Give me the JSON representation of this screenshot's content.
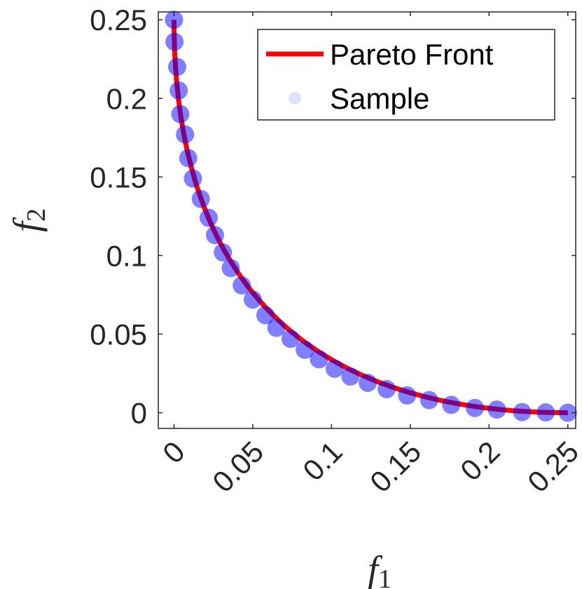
{
  "chart_data": {
    "type": "scatter",
    "title": "",
    "xlabel": {
      "base": "f",
      "sub": "1"
    },
    "ylabel": {
      "base": "f",
      "sub": "2"
    },
    "xlim": [
      -0.01,
      0.255
    ],
    "ylim": [
      -0.01,
      0.255
    ],
    "x_ticks": [
      0,
      0.05,
      0.1,
      0.15,
      0.2,
      0.25
    ],
    "x_tick_labels": [
      "0",
      "0.05",
      "0.1",
      "0.15",
      "0.2",
      "0.25"
    ],
    "y_ticks": [
      0,
      0.05,
      0.1,
      0.15,
      0.2,
      0.25
    ],
    "y_tick_labels": [
      "0",
      "0.05",
      "0.1",
      "0.15",
      "0.2",
      "0.25"
    ],
    "grid": false,
    "legend": {
      "placement": "top-right",
      "entries": [
        {
          "label": "Pareto Front",
          "kind": "line",
          "color": "#ff0000"
        },
        {
          "label": "Sample",
          "kind": "marker",
          "color": "#0000ff"
        }
      ]
    },
    "series": [
      {
        "name": "Pareto Front",
        "kind": "line",
        "color": "#ff0000",
        "relation": "f2 = (0.5 - sqrt(f1))^2",
        "x_range": [
          0,
          0.25
        ]
      },
      {
        "name": "Sample",
        "kind": "scatter",
        "color": "#0000ff",
        "points": [
          [
            0.0,
            0.25
          ],
          [
            0.0003,
            0.236
          ],
          [
            0.002,
            0.22
          ],
          [
            0.003,
            0.205
          ],
          [
            0.004,
            0.19
          ],
          [
            0.007,
            0.177
          ],
          [
            0.009,
            0.162
          ],
          [
            0.012,
            0.149
          ],
          [
            0.017,
            0.136
          ],
          [
            0.022,
            0.124
          ],
          [
            0.026,
            0.113
          ],
          [
            0.031,
            0.102
          ],
          [
            0.036,
            0.092
          ],
          [
            0.043,
            0.081
          ],
          [
            0.05,
            0.072
          ],
          [
            0.058,
            0.062
          ],
          [
            0.065,
            0.054
          ],
          [
            0.074,
            0.047
          ],
          [
            0.083,
            0.04
          ],
          [
            0.092,
            0.034
          ],
          [
            0.102,
            0.028
          ],
          [
            0.112,
            0.023
          ],
          [
            0.123,
            0.019
          ],
          [
            0.135,
            0.015
          ],
          [
            0.148,
            0.011
          ],
          [
            0.162,
            0.008
          ],
          [
            0.176,
            0.005
          ],
          [
            0.191,
            0.003
          ],
          [
            0.205,
            0.002
          ],
          [
            0.221,
            0.0004
          ],
          [
            0.236,
            0.0002
          ],
          [
            0.25,
            0.0
          ]
        ]
      }
    ]
  }
}
